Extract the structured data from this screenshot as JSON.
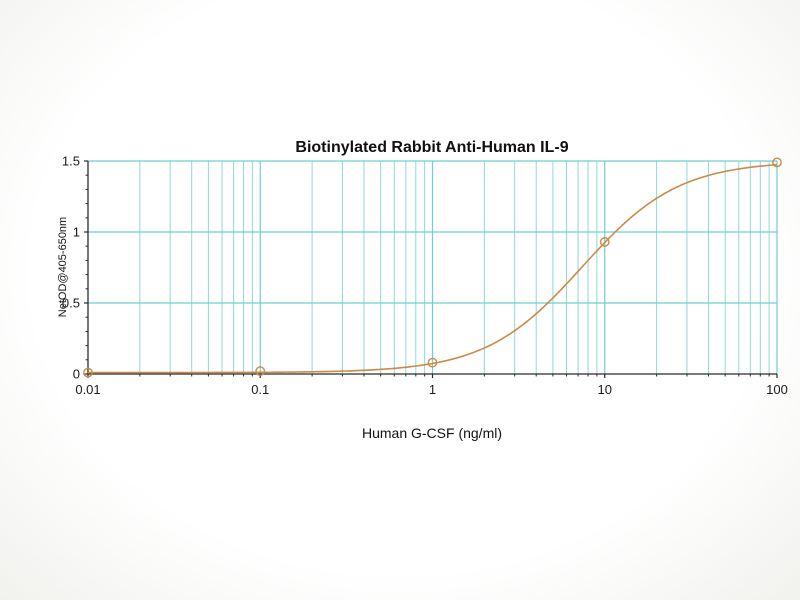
{
  "chart_data": {
    "type": "line",
    "title": "Biotinylated Rabbit Anti-Human IL-9",
    "xlabel": "Human G-CSF (ng/ml)",
    "ylabel": "NetOD@405-650nm",
    "x_scale": "log",
    "xlim": [
      0.01,
      100
    ],
    "ylim": [
      0,
      1.5
    ],
    "x": [
      0.01,
      0.1,
      1,
      10,
      100
    ],
    "y": [
      0.01,
      0.02,
      0.08,
      0.93,
      1.49
    ],
    "x_ticks": [
      {
        "value": 0.01,
        "label": "0.01"
      },
      {
        "value": 0.1,
        "label": "0.1"
      },
      {
        "value": 1,
        "label": "1"
      },
      {
        "value": 10,
        "label": "10"
      },
      {
        "value": 100,
        "label": "100"
      }
    ],
    "y_ticks": [
      {
        "value": 0,
        "label": "0"
      },
      {
        "value": 0.5,
        "label": "0.5"
      },
      {
        "value": 1,
        "label": "1"
      },
      {
        "value": 1.5,
        "label": "1.5"
      }
    ],
    "grid": {
      "shown": true,
      "x_minor_multiples": [
        2,
        3,
        4,
        5,
        6,
        7,
        8,
        9
      ],
      "y_minor_step": 0.1
    },
    "legend": "none",
    "curve_fit": {
      "model": "4PL",
      "a": 0.01,
      "d": 1.5,
      "c": 7.4,
      "b": 1.55
    },
    "colors": {
      "line": "#c98a45",
      "marker_stroke": "#c98a45",
      "marker_fill": "#ffffff",
      "grid_major": "#6fcfcf",
      "grid_minor": "#8fd9d9",
      "axis": "#2b2b2b",
      "text": "#111111",
      "background": "#ffffff"
    }
  }
}
